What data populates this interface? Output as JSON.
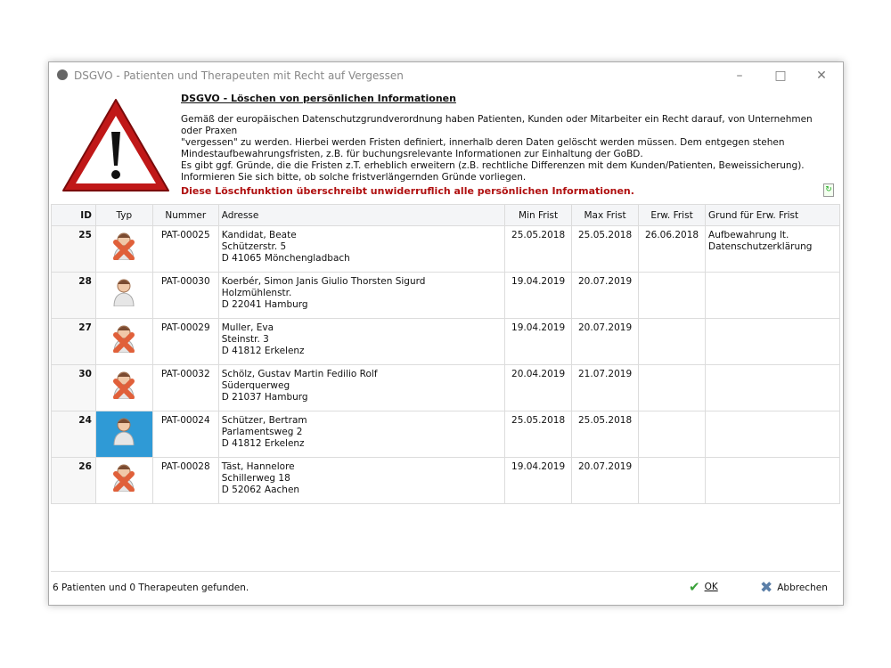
{
  "window": {
    "title": "DSGVO - Patienten und Therapeuten mit Recht auf Vergessen",
    "controls": [
      "minimize",
      "maximize",
      "close"
    ]
  },
  "header": {
    "heading": "DSGVO - Löschen von persönlichen Informationen",
    "paragraph": [
      "Gemäß der europäischen Datenschutzgrundverordnung haben Patienten, Kunden oder Mitarbeiter ein Recht darauf, von Unternehmen oder Praxen",
      "\"vergessen\" zu werden. Hierbei werden Fristen definiert, innerhalb deren Daten gelöscht werden müssen. Dem entgegen stehen",
      "Mindestaufbewahrungsfristen, z.B. für buchungsrelevante Informationen zur Einhaltung der GoBD.",
      "Es gibt ggf. Gründe, die die Fristen z.T. erheblich erweitern (z.B. rechtliche Differenzen mit dem Kunden/Patienten, Beweissicherung).",
      "Informieren Sie sich bitte, ob solche fristverlängernden Gründe vorliegen."
    ],
    "warning": "Diese Löschfunktion überschreibt unwiderruflich alle persönlichen Informationen.",
    "warning_color": "#b01010"
  },
  "table": {
    "columns": [
      "ID",
      "Typ",
      "Nummer",
      "Adresse",
      "Min Frist",
      "Max Frist",
      "Erw. Frist",
      "Grund für Erw. Frist"
    ],
    "rows": [
      {
        "id": "25",
        "typ": "patient-deleted-icon",
        "nummer": "PAT-00025",
        "adresse": [
          "Kandidat, Beate",
          "Schützerstr. 5",
          "D 41065 Mönchengladbach"
        ],
        "min": "25.05.2018",
        "max": "25.05.2018",
        "erw": "26.06.2018",
        "grund": [
          "Aufbewahrung lt.",
          "Datenschutzerklärung"
        ]
      },
      {
        "id": "28",
        "typ": "patient-icon",
        "nummer": "PAT-00030",
        "adresse": [
          "Koerbér, Simon Janis Giulio Thorsten Sigurd",
          "Holzmühlenstr.",
          "D 22041 Hamburg"
        ],
        "min": "19.04.2019",
        "max": "20.07.2019",
        "erw": "",
        "grund": [
          "",
          ""
        ]
      },
      {
        "id": "27",
        "typ": "patient-deleted-icon",
        "nummer": "PAT-00029",
        "adresse": [
          "Muller, Eva",
          "Steinstr. 3",
          "D 41812 Erkelenz"
        ],
        "min": "19.04.2019",
        "max": "20.07.2019",
        "erw": "",
        "grund": [
          "",
          ""
        ]
      },
      {
        "id": "30",
        "typ": "patient-deleted-icon",
        "nummer": "PAT-00032",
        "adresse": [
          "Schölz, Gustav Martin Fedilio Rolf",
          "Süderquerweg",
          "D 21037 Hamburg"
        ],
        "min": "20.04.2019",
        "max": "21.07.2019",
        "erw": "",
        "grund": [
          "",
          ""
        ]
      },
      {
        "id": "24",
        "typ": "patient-icon",
        "nummer": "PAT-00024",
        "adresse": [
          "Schützer, Bertram",
          "Parlamentsweg 2",
          "D 41812 Erkelenz"
        ],
        "min": "25.05.2018",
        "max": "25.05.2018",
        "erw": "",
        "grund": [
          "",
          ""
        ],
        "selected": true
      },
      {
        "id": "26",
        "typ": "patient-deleted-icon",
        "nummer": "PAT-00028",
        "adresse": [
          "Täst, Hannelore",
          "Schillerweg 18",
          "D 52062 Aachen"
        ],
        "min": "19.04.2019",
        "max": "20.07.2019",
        "erw": "",
        "grund": [
          "",
          ""
        ]
      }
    ]
  },
  "footer": {
    "status": "6 Patienten und 0 Therapeuten gefunden.",
    "ok": "OK",
    "cancel": "Abbrechen"
  }
}
